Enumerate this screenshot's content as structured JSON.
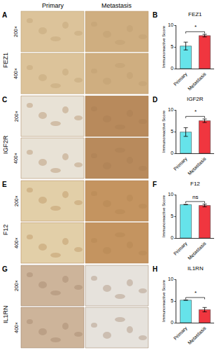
{
  "column_headers": [
    "Primary",
    "Metastasis"
  ],
  "panels": [
    {
      "label": "A",
      "marker": "FEZ1",
      "magnifications": [
        "200×",
        "400×"
      ]
    },
    {
      "label": "C",
      "marker": "IGF2R",
      "magnifications": [
        "200×",
        "400×"
      ]
    },
    {
      "label": "E",
      "marker": "F12",
      "magnifications": [
        "200×",
        "400×"
      ]
    },
    {
      "label": "G",
      "marker": "IL1RN",
      "magnifications": [
        "200×",
        "400×"
      ]
    }
  ],
  "chart_data": [
    {
      "type": "bar",
      "panel": "B",
      "title": "FEZ1",
      "categories": [
        "Primary",
        "Metastasis"
      ],
      "values": [
        5.2,
        7.6
      ],
      "errors": [
        0.9,
        0.3
      ],
      "colors": [
        "#66e3ea",
        "#f0363f"
      ],
      "ylabel": "Immunoreactive Score",
      "ylim": [
        0,
        10
      ],
      "yticks": [
        0,
        5,
        10
      ],
      "annotation": "*"
    },
    {
      "type": "bar",
      "panel": "D",
      "title": "IGF2R",
      "categories": [
        "Primary",
        "Metastasis"
      ],
      "values": [
        4.9,
        7.5
      ],
      "errors": [
        1.0,
        0.4
      ],
      "colors": [
        "#66e3ea",
        "#f0363f"
      ],
      "ylabel": "Immunoreactive Score",
      "ylim": [
        0,
        10
      ],
      "yticks": [
        0,
        5,
        10
      ],
      "annotation": "*"
    },
    {
      "type": "bar",
      "panel": "F",
      "title": "F12",
      "categories": [
        "Primary",
        "Metastasis"
      ],
      "values": [
        7.7,
        7.5
      ],
      "errors": [
        0.0,
        0.3
      ],
      "colors": [
        "#66e3ea",
        "#f0363f"
      ],
      "ylabel": "Immunoreactive Score",
      "ylim": [
        0,
        10
      ],
      "yticks": [
        0,
        5,
        10
      ],
      "annotation": "ns"
    },
    {
      "type": "bar",
      "panel": "H",
      "title": "IL1RN",
      "categories": [
        "Primary",
        "Metastasis"
      ],
      "values": [
        5.2,
        3.0
      ],
      "errors": [
        0.0,
        0.5
      ],
      "colors": [
        "#66e3ea",
        "#f0363f"
      ],
      "ylabel": "Immunoreactive Score",
      "ylim": [
        0,
        10
      ],
      "yticks": [
        0,
        5,
        10
      ],
      "annotation": "*"
    }
  ]
}
